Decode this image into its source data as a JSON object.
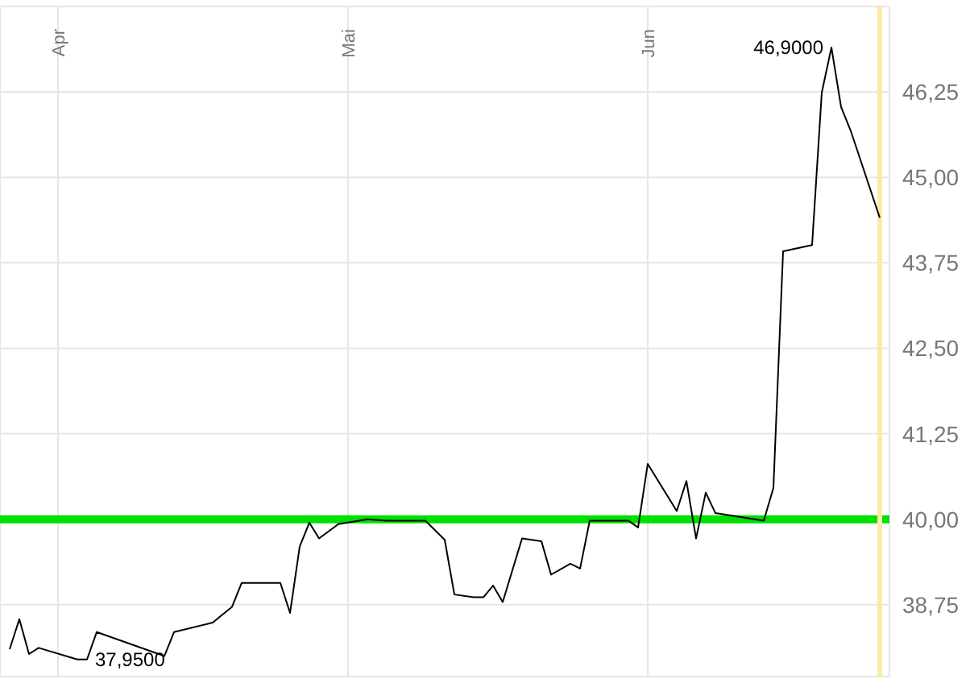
{
  "chart_data": {
    "type": "line",
    "x": [
      "--03-27",
      "--03-28",
      "--03-29",
      "--03-30",
      "--04-03",
      "--04-04",
      "--04-05",
      "--04-12",
      "--04-13",
      "--04-17",
      "--04-19",
      "--04-20",
      "--04-24",
      "--04-25",
      "--04-26",
      "--04-27",
      "--04-28",
      "--04-30",
      "--05-03",
      "--05-05",
      "--05-09",
      "--05-11",
      "--05-12",
      "--05-14",
      "--05-15",
      "--05-16",
      "--05-17",
      "--05-19",
      "--05-21",
      "--05-22",
      "--05-24",
      "--05-25",
      "--05-26",
      "--05-30",
      "--05-31",
      "--06-01",
      "--06-04",
      "--06-05",
      "--06-06",
      "--06-07",
      "--06-08",
      "--06-13",
      "--06-14",
      "--06-15",
      "--06-18",
      "--06-19",
      "--06-20",
      "--06-21",
      "--06-22",
      "--06-25"
    ],
    "series": [
      {
        "color": "#000000",
        "values": [
          38.1,
          38.54,
          38.03,
          38.12,
          37.95,
          37.95,
          38.35,
          38.0,
          38.35,
          38.49,
          38.72,
          39.07,
          39.07,
          38.63,
          39.6,
          39.95,
          39.72,
          39.93,
          40.0,
          39.98,
          39.98,
          39.7,
          38.9,
          38.86,
          38.86,
          39.03,
          38.79,
          39.72,
          39.68,
          39.19,
          39.35,
          39.28,
          39.98,
          39.98,
          39.88,
          40.81,
          40.12,
          40.56,
          39.72,
          40.39,
          40.09,
          39.98,
          40.46,
          43.92,
          44.01,
          46.24,
          46.9,
          46.03,
          45.68,
          44.41
        ]
      }
    ],
    "xlim": [
      "--03-26",
      "--06-26"
    ],
    "xticks": [
      {
        "value": "--04-01",
        "label": "Apr"
      },
      {
        "value": "--05-01",
        "label": "Mai"
      },
      {
        "value": "--06-01",
        "label": "Jun"
      }
    ],
    "ylim": [
      37.7,
      47.5
    ],
    "yticks": [
      {
        "value": 38.75,
        "label": "38,75"
      },
      {
        "value": 40,
        "label": "40,00"
      },
      {
        "value": 41.25,
        "label": "41,25"
      },
      {
        "value": 42.5,
        "label": "42,50"
      },
      {
        "value": 43.75,
        "label": "43,75"
      },
      {
        "value": 45,
        "label": "45,00"
      },
      {
        "value": 46.25,
        "label": "46,25"
      }
    ],
    "grid": true,
    "marker": "none",
    "line_style": "solid",
    "ref_lines": [
      {
        "axis": "y",
        "value": 40,
        "color": "#00e000"
      },
      {
        "axis": "x",
        "value": "--06-25",
        "color": "#ffe9a8"
      }
    ],
    "annotations": [
      {
        "text": "46,9000",
        "x": "--06-20",
        "y": 46.9
      },
      {
        "text": "37,9500",
        "x": "--04-04",
        "y": 37.95
      }
    ]
  }
}
